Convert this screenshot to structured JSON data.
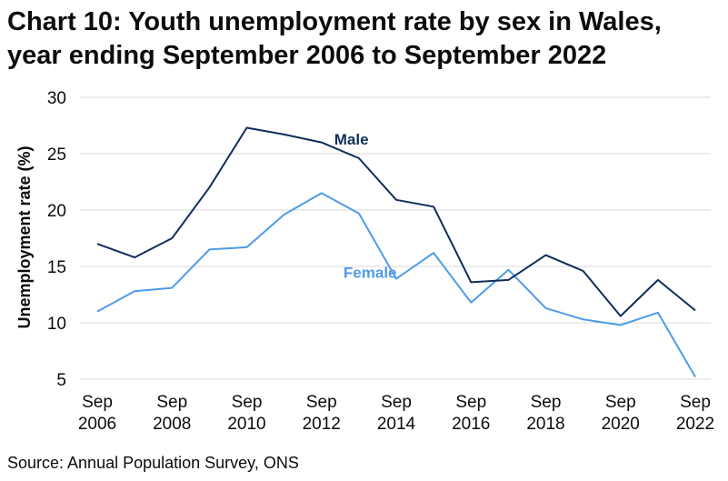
{
  "title_line1": "Chart 10: Youth unemployment rate by sex in Wales,",
  "title_line2": "year ending September 2006 to September 2022",
  "source": "Source: Annual Population Survey, ONS",
  "colors": {
    "male": "#0f2e5a",
    "female": "#4f9be8",
    "grid": "#d9d9d9"
  },
  "chart_data": {
    "type": "line",
    "title": "Chart 10: Youth unemployment rate by sex in Wales, year ending September 2006 to September 2022",
    "xlabel": "",
    "ylabel": "Unemployment rate (%)",
    "ylim": [
      5,
      30
    ],
    "yticks": [
      5,
      10,
      15,
      20,
      25,
      30
    ],
    "grid": true,
    "x": [
      2006,
      2007,
      2008,
      2009,
      2010,
      2011,
      2012,
      2013,
      2014,
      2015,
      2016,
      2017,
      2018,
      2019,
      2020,
      2021,
      2022
    ],
    "xtick_labels": [
      {
        "x": 2006,
        "line1": "Sep",
        "line2": "2006"
      },
      {
        "x": 2008,
        "line1": "Sep",
        "line2": "2008"
      },
      {
        "x": 2010,
        "line1": "Sep",
        "line2": "2010"
      },
      {
        "x": 2012,
        "line1": "Sep",
        "line2": "2012"
      },
      {
        "x": 2014,
        "line1": "Sep",
        "line2": "2014"
      },
      {
        "x": 2016,
        "line1": "Sep",
        "line2": "2016"
      },
      {
        "x": 2018,
        "line1": "Sep",
        "line2": "2018"
      },
      {
        "x": 2020,
        "line1": "Sep",
        "line2": "2020"
      },
      {
        "x": 2022,
        "line1": "Sep",
        "line2": "2022"
      }
    ],
    "series": [
      {
        "name": "Male",
        "label_anchor": {
          "x": 2012.8,
          "y": 25.8
        },
        "values": [
          17.0,
          15.8,
          17.5,
          22.0,
          27.3,
          26.7,
          26.0,
          24.6,
          20.9,
          20.3,
          13.6,
          13.8,
          16.0,
          14.6,
          10.6,
          13.8,
          11.1
        ]
      },
      {
        "name": "Female",
        "label_anchor": {
          "x": 2013.3,
          "y": 14.0
        },
        "values": [
          11.0,
          12.8,
          13.1,
          16.5,
          16.7,
          19.6,
          21.5,
          19.7,
          13.9,
          16.2,
          11.8,
          14.7,
          11.3,
          10.3,
          9.8,
          10.9,
          5.2
        ]
      }
    ]
  }
}
